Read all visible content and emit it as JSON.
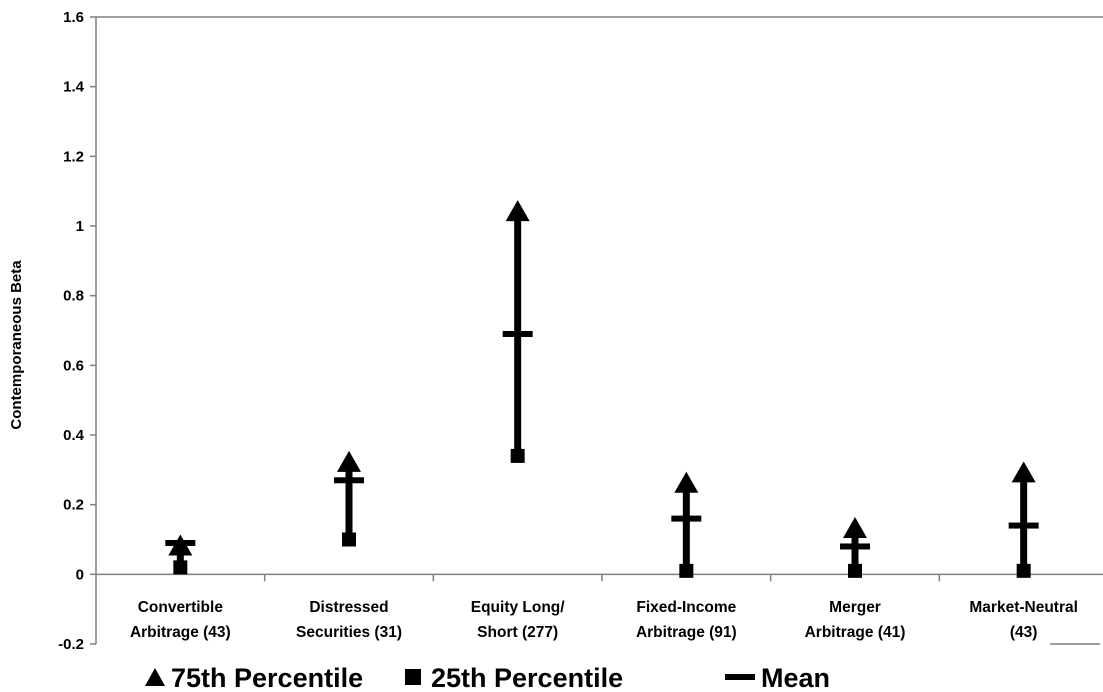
{
  "chart_data": {
    "type": "scatter",
    "title": "",
    "ylabel": "Contemporaneous Beta",
    "xlabel": "",
    "ylim": [
      -0.2,
      1.6
    ],
    "yticks": [
      -0.2,
      0,
      0.2,
      0.4,
      0.6,
      0.8,
      1,
      1.2,
      1.4,
      1.6
    ],
    "ytick_labels": [
      "-0.2",
      "0",
      "0.2",
      "0.4",
      "0.6",
      "0.8",
      "1",
      "1.2",
      "1.4",
      "1.6"
    ],
    "grid": false,
    "legend_position": "bottom",
    "categories": [
      [
        "Convertible",
        "Arbitrage (43)"
      ],
      [
        "Distressed",
        "Securities (31)"
      ],
      [
        "Equity Long/",
        "Short (277)"
      ],
      [
        "Fixed-Income",
        "Arbitrage (91)"
      ],
      [
        "Merger",
        "Arbitrage (41)"
      ],
      [
        "Market-Neutral",
        "(43)"
      ]
    ],
    "series": [
      {
        "name": "75th Percentile",
        "marker": "triangle",
        "values": [
          0.08,
          0.32,
          1.04,
          0.26,
          0.13,
          0.29
        ]
      },
      {
        "name": "25th Percentile",
        "marker": "square",
        "values": [
          0.02,
          0.1,
          0.34,
          0.01,
          0.01,
          0.01
        ]
      },
      {
        "name": "Mean",
        "marker": "dash",
        "values": [
          0.09,
          0.27,
          0.69,
          0.16,
          0.08,
          0.14
        ]
      }
    ],
    "colors": {
      "marks": "#000000",
      "axes": "#808080"
    }
  },
  "legend": {
    "items": [
      {
        "symbol": "▲",
        "label": "75th Percentile"
      },
      {
        "symbol": "■",
        "label": "25th Percentile"
      },
      {
        "symbol": "▬",
        "label": "Mean"
      }
    ]
  }
}
